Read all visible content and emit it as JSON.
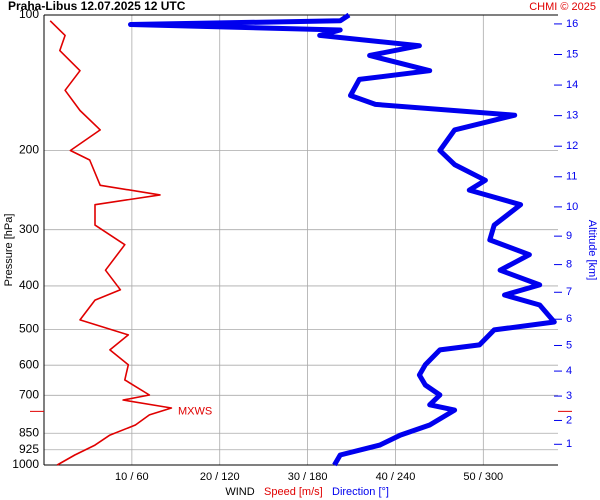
{
  "chart_data": {
    "type": "wind-profile",
    "title": "Praha-Libus    12.07.2025 12 UTC",
    "credit": "CHMI © 2025",
    "y_label": "Pressure [hPa]",
    "y2_label": "Altitude [km]",
    "x_label": "WIND",
    "ylim": [
      100,
      1000
    ],
    "log_y": true,
    "yticks": [
      100,
      200,
      300,
      400,
      500,
      600,
      700,
      850,
      925,
      1000
    ],
    "xlim": [
      0,
      58.5
    ],
    "x2lim": [
      0,
      350.5
    ],
    "xticks": [
      {
        "value": 10,
        "label": "10 / 60"
      },
      {
        "value": 20,
        "label": "20 / 120"
      },
      {
        "value": 30,
        "label": "30 / 180"
      },
      {
        "value": 40,
        "label": "40 / 240"
      },
      {
        "value": 50,
        "label": "50 / 300"
      }
    ],
    "y2ticks": [
      1,
      2,
      3,
      4,
      5,
      6,
      7,
      8,
      9,
      10,
      11,
      12,
      13,
      14,
      15,
      16
    ],
    "grid": true,
    "series": [
      {
        "name": "Speed [m/s]",
        "color": "#e00000",
        "pressure": [
          1000,
          950,
          903,
          858,
          815,
          774,
          747,
          717,
          699,
          647,
          599,
          555,
          514,
          476,
          430,
          408,
          369,
          324,
          293,
          264,
          251,
          239,
          210,
          200,
          180,
          163,
          147,
          133,
          120,
          111,
          103
        ],
        "values": [
          1.5,
          3.5,
          5.8,
          7.5,
          10.4,
          12,
          14.5,
          9,
          12,
          9.2,
          9.6,
          7.5,
          9.6,
          4.1,
          5.8,
          8.7,
          7,
          9.2,
          5.8,
          5.8,
          13.2,
          6.4,
          5.2,
          3,
          6.4,
          4.1,
          2.4,
          4.1,
          1.8,
          2.4,
          0.7
        ]
      },
      {
        "name": "Direction [°]",
        "color": "#0000ee",
        "axis": "x2",
        "pressure": [
          1000,
          950,
          903,
          858,
          815,
          755,
          735,
          699,
          664,
          631,
          599,
          555,
          541,
          501,
          481,
          441,
          419,
          398,
          369,
          341,
          316,
          293,
          264,
          245,
          233,
          215,
          200,
          180,
          167,
          158,
          151,
          139,
          133,
          123,
          117,
          111,
          108,
          105,
          103,
          100
        ],
        "values": [
          198,
          202,
          229,
          243,
          263,
          280,
          263,
          270,
          260,
          256,
          260,
          270,
          297,
          307,
          348,
          338,
          314,
          338,
          311,
          331,
          304,
          307,
          325,
          290,
          301,
          280,
          270,
          280,
          321,
          226,
          209,
          215,
          263,
          222,
          256,
          188,
          202,
          59,
          202,
          208
        ]
      }
    ],
    "mxws": {
      "label": "MXWS",
      "pressure": 760
    }
  }
}
